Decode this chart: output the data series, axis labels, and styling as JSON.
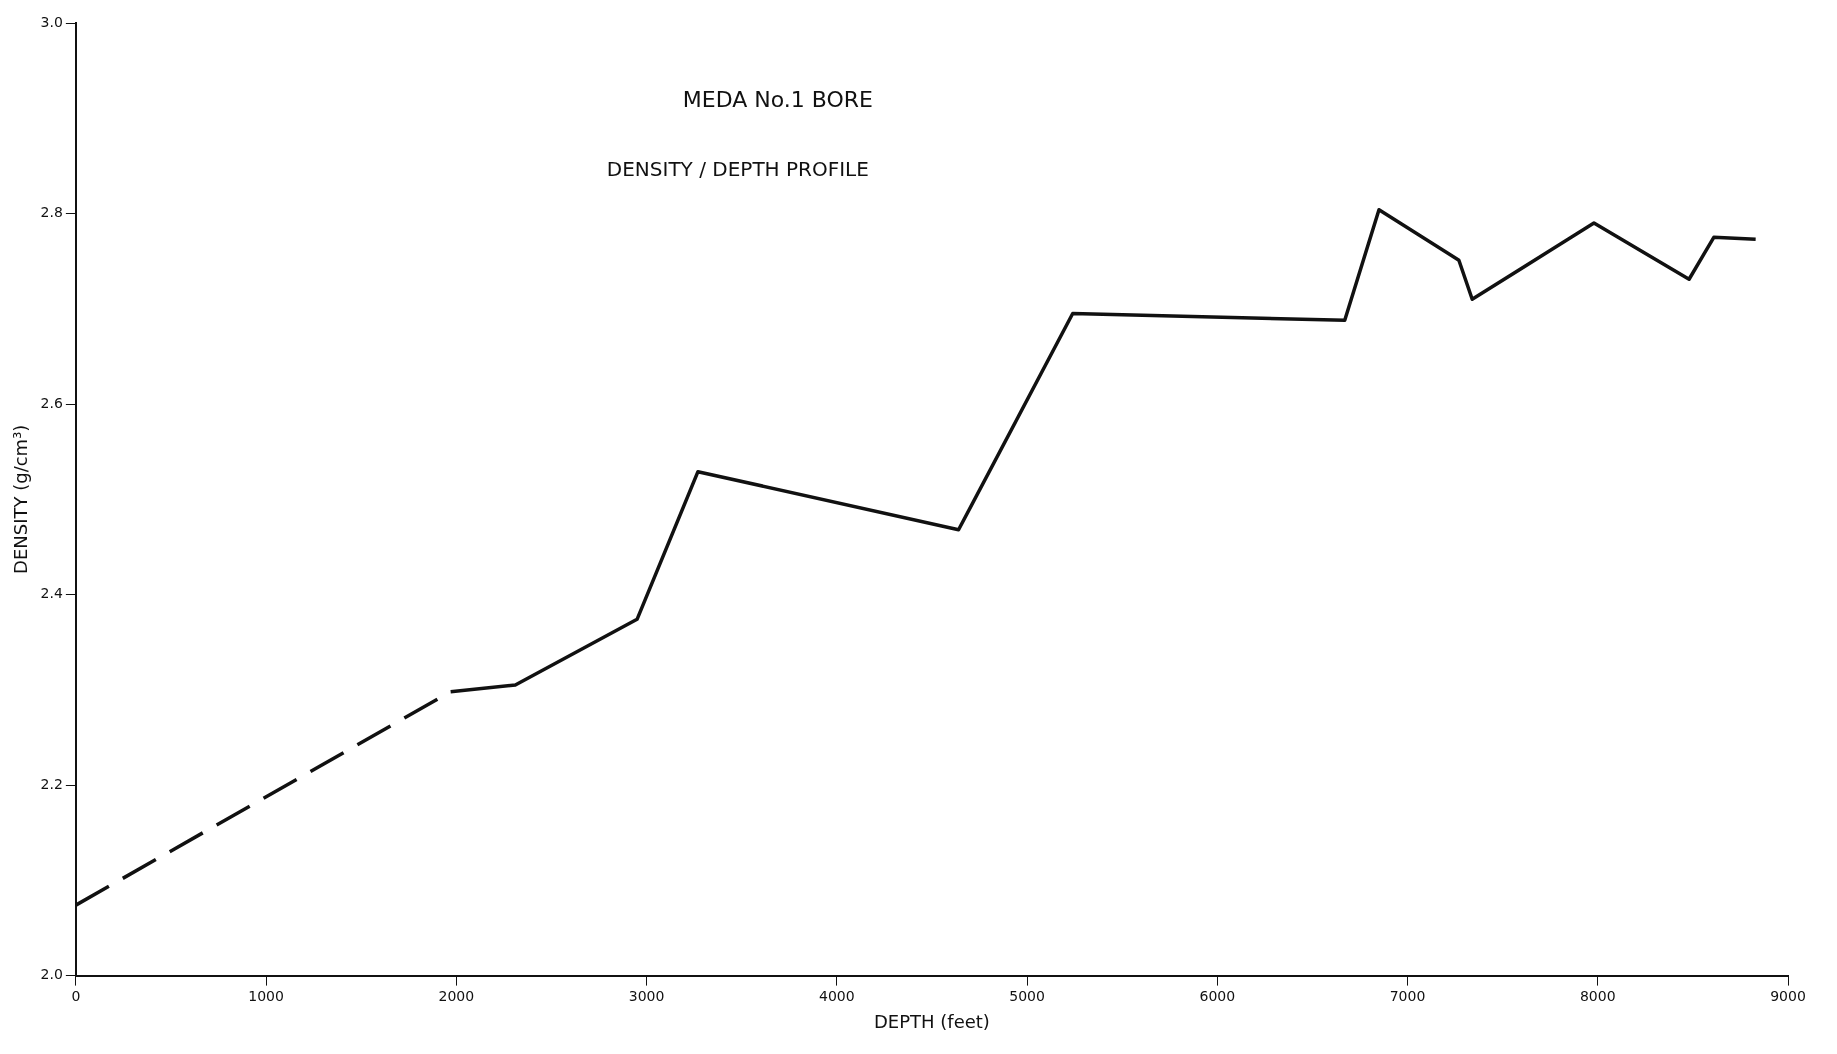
{
  "chart_data": {
    "type": "line",
    "title": "MEDA No.1 BORE",
    "subtitle": "DENSITY / DEPTH PROFILE",
    "xlabel": "DEPTH (feet)",
    "ylabel": "DENSITY (g/cm³)",
    "series": [
      {
        "color": "#111111",
        "line_style": "dashed",
        "x": [
          0,
          1970
        ],
        "values": [
          2.074,
          2.298
        ]
      },
      {
        "color": "#111111",
        "line_style": "solid",
        "x": [
          1970,
          2310,
          2950,
          3270,
          4640,
          5240,
          6670,
          6850,
          7270,
          7340,
          7980,
          8480,
          8610,
          8830
        ],
        "values": [
          2.298,
          2.305,
          2.374,
          2.529,
          2.468,
          2.695,
          2.688,
          2.804,
          2.751,
          2.71,
          2.79,
          2.731,
          2.775,
          2.773
        ]
      }
    ],
    "xlim": [
      0,
      9000
    ],
    "xticks": [
      0,
      1000,
      2000,
      3000,
      4000,
      5000,
      6000,
      7000,
      8000,
      9000
    ],
    "ylim": [
      2.0,
      3.0
    ],
    "yticks": [
      {
        "value": 2.0,
        "label": "2.0"
      },
      {
        "value": 2.2,
        "label": "2.2"
      },
      {
        "value": 2.4,
        "label": "2.4"
      },
      {
        "value": 2.6,
        "label": "2.6"
      },
      {
        "value": 2.8,
        "label": "2.8"
      },
      {
        "value": 3.0,
        "label": "3.0"
      }
    ],
    "grid": false,
    "legend": false,
    "marker": "none"
  }
}
